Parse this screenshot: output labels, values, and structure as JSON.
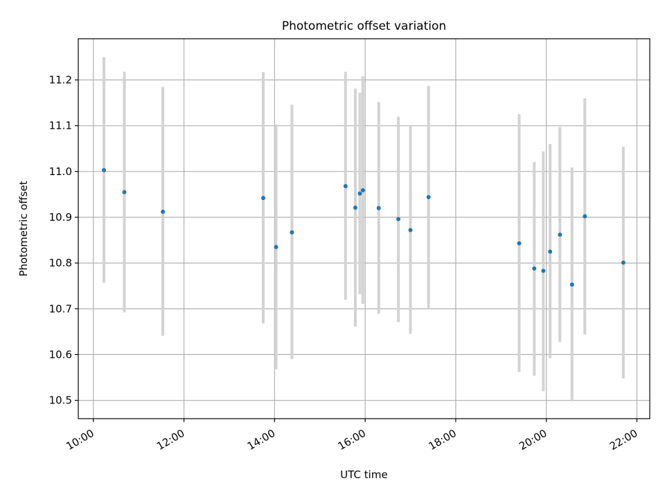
{
  "chart_data": {
    "type": "scatter",
    "title": "Photometric offset variation",
    "xlabel": "UTC time",
    "ylabel": "Photometric offset",
    "grid": true,
    "x_is_time": true,
    "xlim": [
      "09:40",
      "22:17"
    ],
    "ylim": [
      10.46,
      11.29
    ],
    "xticks": [
      "10:00",
      "12:00",
      "14:00",
      "16:00",
      "18:00",
      "20:00",
      "22:00"
    ],
    "yticks": [
      "10.5",
      "10.6",
      "10.7",
      "10.8",
      "10.9",
      "11.0",
      "11.1",
      "11.2"
    ],
    "point_color": "#1f77b4",
    "errorbar_color": "#d3d3d3",
    "series": [
      {
        "points": [
          {
            "x": "10:14",
            "y": 11.003,
            "err_low": 10.757,
            "err_high": 11.25
          },
          {
            "x": "10:41",
            "y": 10.955,
            "err_low": 10.692,
            "err_high": 11.218
          },
          {
            "x": "11:32",
            "y": 10.912,
            "err_low": 10.641,
            "err_high": 11.185
          },
          {
            "x": "13:45",
            "y": 10.942,
            "err_low": 10.668,
            "err_high": 11.217
          },
          {
            "x": "14:02",
            "y": 10.835,
            "err_low": 10.568,
            "err_high": 11.103
          },
          {
            "x": "14:23",
            "y": 10.867,
            "err_low": 10.59,
            "err_high": 11.146
          },
          {
            "x": "15:34",
            "y": 10.968,
            "err_low": 10.72,
            "err_high": 11.218
          },
          {
            "x": "15:47",
            "y": 10.921,
            "err_low": 10.661,
            "err_high": 11.181
          },
          {
            "x": "15:53",
            "y": 10.952,
            "err_low": 10.732,
            "err_high": 11.172
          },
          {
            "x": "15:57",
            "y": 10.959,
            "err_low": 10.711,
            "err_high": 11.208
          },
          {
            "x": "16:18",
            "y": 10.92,
            "err_low": 10.689,
            "err_high": 11.152
          },
          {
            "x": "16:44",
            "y": 10.896,
            "err_low": 10.671,
            "err_high": 11.12
          },
          {
            "x": "17:00",
            "y": 10.872,
            "err_low": 10.645,
            "err_high": 11.1
          },
          {
            "x": "17:24",
            "y": 10.944,
            "err_low": 10.7,
            "err_high": 11.187
          },
          {
            "x": "19:24",
            "y": 10.843,
            "err_low": 10.562,
            "err_high": 11.125
          },
          {
            "x": "19:44",
            "y": 10.788,
            "err_low": 10.554,
            "err_high": 11.021
          },
          {
            "x": "19:56",
            "y": 10.783,
            "err_low": 10.52,
            "err_high": 11.044
          },
          {
            "x": "20:05",
            "y": 10.825,
            "err_low": 10.592,
            "err_high": 11.06
          },
          {
            "x": "20:18",
            "y": 10.862,
            "err_low": 10.628,
            "err_high": 11.097
          },
          {
            "x": "20:34",
            "y": 10.753,
            "err_low": 10.498,
            "err_high": 11.009
          },
          {
            "x": "20:51",
            "y": 10.902,
            "err_low": 10.644,
            "err_high": 11.16
          },
          {
            "x": "21:42",
            "y": 10.801,
            "err_low": 10.548,
            "err_high": 11.054
          }
        ]
      }
    ]
  }
}
